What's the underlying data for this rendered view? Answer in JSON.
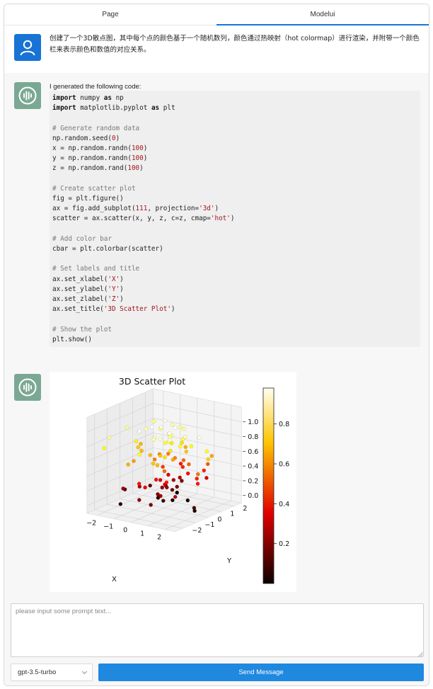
{
  "tabs": [
    {
      "label": "Page",
      "active": false
    },
    {
      "label": "Modelui",
      "active": true
    }
  ],
  "user_message": {
    "text": "创建了一个3D散点图，其中每个点的颜色基于一个随机数列，颜色通过热映射（hot colormap）进行渲染，并附带一个颜色栏来表示颜色和数值的对应关系。",
    "avatar_icon": "user-icon"
  },
  "bot_message_code": {
    "intro": "I generated the following code:",
    "avatar_icon": "waveform-icon",
    "code_lines": [
      "import numpy as np",
      "import matplotlib.pyplot as plt",
      "",
      "# Generate random data",
      "np.random.seed(0)",
      "x = np.random.randn(100)",
      "y = np.random.randn(100)",
      "z = np.random.rand(100)",
      "",
      "# Create scatter plot",
      "fig = plt.figure()",
      "ax = fig.add_subplot(111, projection='3d')",
      "scatter = ax.scatter(x, y, z, c=z, cmap='hot')",
      "",
      "# Add color bar",
      "cbar = plt.colorbar(scatter)",
      "",
      "# Set labels and title",
      "ax.set_xlabel('X')",
      "ax.set_ylabel('Y')",
      "ax.set_zlabel('Z')",
      "ax.set_title('3D Scatter Plot')",
      "",
      "# Show the plot",
      "plt.show()"
    ]
  },
  "bot_message_plot": {
    "avatar_icon": "waveform-icon",
    "chart_data": {
      "type": "scatter",
      "title": "3D Scatter Plot",
      "xlabel": "X",
      "ylabel": "Y",
      "zlabel": "",
      "colormap": "hot",
      "x_ticks": [
        "−2",
        "−1",
        "0",
        "1",
        "2"
      ],
      "y_ticks": [
        "−2",
        "−1",
        "0",
        "1",
        "2"
      ],
      "z_ticks": [
        "0.0",
        "0.2",
        "0.4",
        "0.6",
        "0.8",
        "1.0"
      ],
      "colorbar_ticks": [
        "0.2",
        "0.4",
        "0.6",
        "0.8"
      ],
      "xlim": [
        -2.6,
        2.6
      ],
      "ylim": [
        -2.6,
        2.6
      ],
      "zlim": [
        0,
        1
      ],
      "colorbar_range": [
        0.0,
        0.98
      ]
    }
  },
  "composer": {
    "placeholder": "please input some prompt text...",
    "model": "gpt-3.5-turbo",
    "send_label": "Send Message"
  },
  "colors": {
    "accent": "#1f88df",
    "user_avatar": "#1773d4",
    "bot_avatar": "#7ba894"
  }
}
